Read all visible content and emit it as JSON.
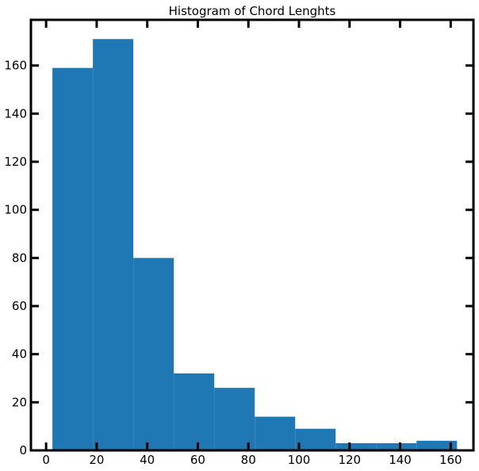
{
  "chart_data": {
    "type": "bar",
    "title": "Histogram of Chord Lenghts",
    "xlabel": "",
    "ylabel": "",
    "xlim": [
      -6,
      169
    ],
    "ylim": [
      0,
      179
    ],
    "bins": [
      {
        "x0": 2.5,
        "x1": 18.5,
        "value": 159
      },
      {
        "x0": 18.5,
        "x1": 34.5,
        "value": 171
      },
      {
        "x0": 34.5,
        "x1": 50.5,
        "value": 80
      },
      {
        "x0": 50.5,
        "x1": 66.5,
        "value": 32
      },
      {
        "x0": 66.5,
        "x1": 82.5,
        "value": 26
      },
      {
        "x0": 82.5,
        "x1": 98.5,
        "value": 14
      },
      {
        "x0": 98.5,
        "x1": 114.5,
        "value": 9
      },
      {
        "x0": 114.5,
        "x1": 130.5,
        "value": 3
      },
      {
        "x0": 130.5,
        "x1": 146.5,
        "value": 3
      },
      {
        "x0": 146.5,
        "x1": 162.5,
        "value": 4
      }
    ],
    "xticks": [
      0,
      20,
      40,
      60,
      80,
      100,
      120,
      140,
      160
    ],
    "xtick_labels": [
      "0",
      "20",
      "40",
      "60",
      "80",
      "100",
      "120",
      "140",
      "160"
    ],
    "yticks": [
      0,
      20,
      40,
      60,
      80,
      100,
      120,
      140,
      160
    ],
    "ytick_labels": [
      "0",
      "20",
      "40",
      "60",
      "80",
      "100",
      "120",
      "140",
      "160"
    ],
    "bar_color": "#1f77b4",
    "grid": false,
    "legend": "none"
  }
}
